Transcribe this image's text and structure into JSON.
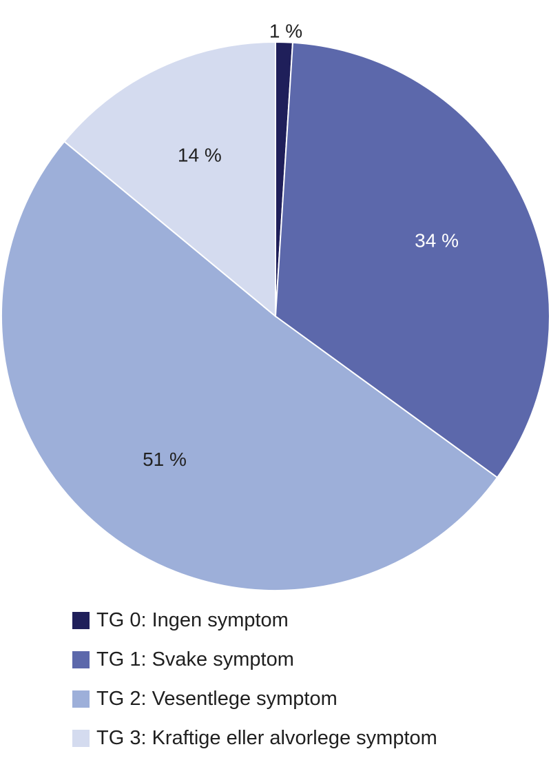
{
  "chart_data": {
    "type": "pie",
    "slices": [
      {
        "label": "TG 0: Ingen symptom",
        "value": 1,
        "value_label": "1 %",
        "color": "#1f1f5a",
        "label_color": "#222222"
      },
      {
        "label": "TG 1: Svake symptom",
        "value": 34,
        "value_label": "34 %",
        "color": "#5c68ab",
        "label_color": "#ffffff"
      },
      {
        "label": "TG 2: Vesentlege symptom",
        "value": 51,
        "value_label": "51 %",
        "color": "#9dafd9",
        "label_color": "#222222"
      },
      {
        "label": "TG 3: Kraftige eller alvorlege symptom",
        "value": 14,
        "value_label": "14 %",
        "color": "#d4dbef",
        "label_color": "#222222"
      }
    ],
    "start": "top",
    "direction": "clockwise",
    "legend_position": "bottom-left"
  }
}
